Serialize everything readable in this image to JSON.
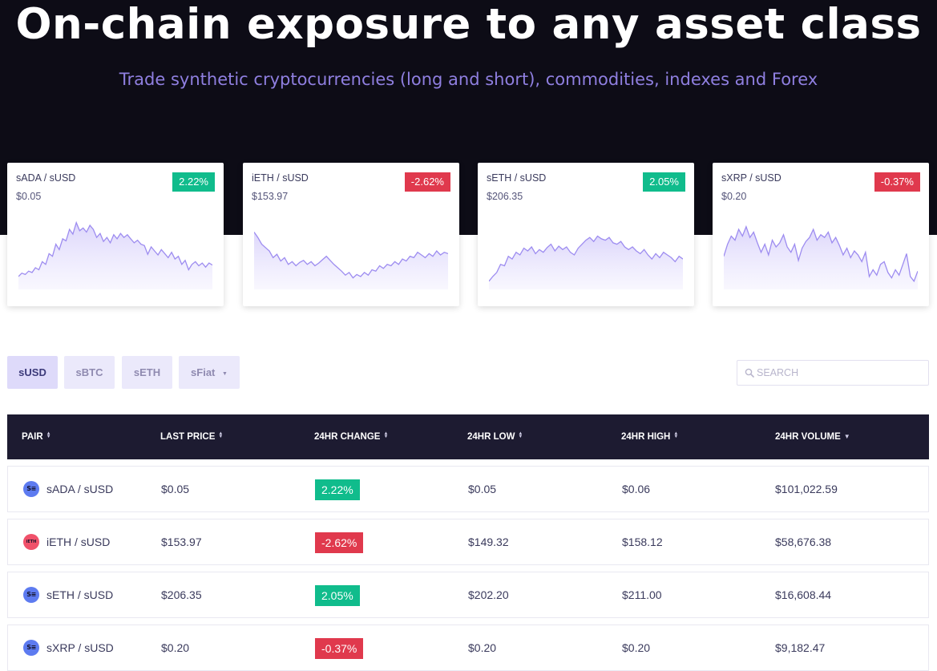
{
  "hero": {
    "title": "On-chain exposure to any asset class",
    "subtitle": "Trade synthetic cryptocurrencies (long and short), commodities, indexes and Forex"
  },
  "colors": {
    "hero_bg": "#0d0c16",
    "accent_purple": "#8f7fe0",
    "positive": "#10bc8c",
    "negative": "#e0394d",
    "table_header_bg": "#1d1b31",
    "spark_line": "#9d8cf0"
  },
  "cards": [
    {
      "pair": "sADA / sUSD",
      "price": "$0.05",
      "change": "2.22%",
      "direction": "up",
      "spark": [
        0.12,
        0.17,
        0.15,
        0.2,
        0.18,
        0.25,
        0.22,
        0.34,
        0.3,
        0.46,
        0.42,
        0.6,
        0.52,
        0.68,
        0.65,
        0.82,
        0.75,
        0.92,
        0.8,
        0.84,
        0.78,
        0.88,
        0.82,
        0.7,
        0.76,
        0.64,
        0.7,
        0.62,
        0.74,
        0.68,
        0.76,
        0.7,
        0.74,
        0.68,
        0.62,
        0.66,
        0.6,
        0.58,
        0.45,
        0.56,
        0.5,
        0.44,
        0.52,
        0.46,
        0.4,
        0.48,
        0.38,
        0.42,
        0.3,
        0.36,
        0.22,
        0.3,
        0.34,
        0.28,
        0.32,
        0.26,
        0.32,
        0.29
      ]
    },
    {
      "pair": "iETH / sUSD",
      "price": "$153.97",
      "change": "-2.62%",
      "direction": "down",
      "spark": [
        0.78,
        0.7,
        0.6,
        0.55,
        0.5,
        0.4,
        0.45,
        0.35,
        0.4,
        0.3,
        0.34,
        0.28,
        0.33,
        0.36,
        0.3,
        0.34,
        0.28,
        0.32,
        0.37,
        0.42,
        0.36,
        0.3,
        0.25,
        0.2,
        0.14,
        0.18,
        0.1,
        0.15,
        0.12,
        0.18,
        0.14,
        0.22,
        0.2,
        0.28,
        0.24,
        0.3,
        0.28,
        0.34,
        0.3,
        0.38,
        0.35,
        0.42,
        0.4,
        0.48,
        0.44,
        0.4,
        0.46,
        0.42,
        0.5,
        0.44,
        0.48,
        0.46
      ]
    },
    {
      "pair": "sETH / sUSD",
      "price": "$206.35",
      "change": "2.05%",
      "direction": "up",
      "spark": [
        0.05,
        0.12,
        0.18,
        0.3,
        0.28,
        0.42,
        0.38,
        0.48,
        0.44,
        0.54,
        0.5,
        0.56,
        0.46,
        0.52,
        0.48,
        0.55,
        0.6,
        0.5,
        0.57,
        0.52,
        0.56,
        0.48,
        0.44,
        0.54,
        0.6,
        0.66,
        0.7,
        0.64,
        0.72,
        0.68,
        0.66,
        0.7,
        0.62,
        0.6,
        0.64,
        0.56,
        0.52,
        0.56,
        0.5,
        0.46,
        0.52,
        0.44,
        0.38,
        0.46,
        0.4,
        0.48,
        0.44,
        0.4,
        0.34,
        0.42,
        0.38
      ]
    },
    {
      "pair": "sXRP / sUSD",
      "price": "$0.20",
      "change": "-0.37%",
      "direction": "down",
      "spark": [
        0.42,
        0.6,
        0.72,
        0.66,
        0.82,
        0.72,
        0.86,
        0.7,
        0.78,
        0.62,
        0.48,
        0.6,
        0.44,
        0.66,
        0.56,
        0.62,
        0.74,
        0.56,
        0.48,
        0.6,
        0.36,
        0.54,
        0.64,
        0.7,
        0.82,
        0.66,
        0.74,
        0.7,
        0.78,
        0.62,
        0.7,
        0.58,
        0.44,
        0.54,
        0.4,
        0.5,
        0.44,
        0.34,
        0.48,
        0.12,
        0.22,
        0.14,
        0.3,
        0.34,
        0.18,
        0.1,
        0.22,
        0.14,
        0.3,
        0.46,
        0.12,
        0.05,
        0.2
      ]
    }
  ],
  "filters": [
    {
      "label": "sUSD",
      "active": true
    },
    {
      "label": "sBTC",
      "active": false
    },
    {
      "label": "sETH",
      "active": false
    },
    {
      "label": "sFiat",
      "active": false,
      "dropdown": true
    }
  ],
  "search": {
    "placeholder": "SEARCH",
    "value": ""
  },
  "table": {
    "columns": [
      {
        "label": "PAIR",
        "sort": "both"
      },
      {
        "label": "LAST PRICE",
        "sort": "both"
      },
      {
        "label": "24HR CHANGE",
        "sort": "both"
      },
      {
        "label": "24HR LOW",
        "sort": "both"
      },
      {
        "label": "24HR HIGH",
        "sort": "both"
      },
      {
        "label": "24HR VOLUME",
        "sort": "desc"
      }
    ],
    "rows": [
      {
        "icon": "sadA-coin-icon",
        "icon_kind": "s",
        "icon_text": "S≡",
        "pair": "sADA / sUSD",
        "last_price": "$0.05",
        "change": "2.22%",
        "direction": "up",
        "low": "$0.05",
        "high": "$0.06",
        "volume": "$101,022.59"
      },
      {
        "icon": "ieth-coin-icon",
        "icon_kind": "i",
        "icon_text": "iETH",
        "pair": "iETH / sUSD",
        "last_price": "$153.97",
        "change": "-2.62%",
        "direction": "down",
        "low": "$149.32",
        "high": "$158.12",
        "volume": "$58,676.38"
      },
      {
        "icon": "seth-coin-icon",
        "icon_kind": "s",
        "icon_text": "S≡",
        "pair": "sETH / sUSD",
        "last_price": "$206.35",
        "change": "2.05%",
        "direction": "up",
        "low": "$202.20",
        "high": "$211.00",
        "volume": "$16,608.44"
      },
      {
        "icon": "sxrp-coin-icon",
        "icon_kind": "s",
        "icon_text": "S≡",
        "pair": "sXRP / sUSD",
        "last_price": "$0.20",
        "change": "-0.37%",
        "direction": "down",
        "low": "$0.20",
        "high": "$0.20",
        "volume": "$9,182.47"
      }
    ]
  }
}
